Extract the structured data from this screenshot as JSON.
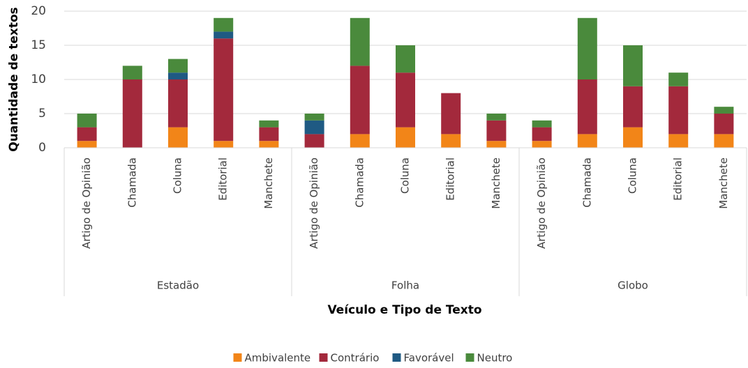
{
  "chart_data": {
    "type": "stacked_bar",
    "x_label": "Veículo e Tipo de Texto",
    "y_label": "Quantidade de textos",
    "groups": [
      {
        "name": "Estadão",
        "categories": [
          "Artigo de Opinião",
          "Chamada",
          "Coluna",
          "Editorial",
          "Manchete"
        ]
      },
      {
        "name": "Folha",
        "categories": [
          "Artigo de Opinião",
          "Chamada",
          "Coluna",
          "Editorial",
          "Manchete"
        ]
      },
      {
        "name": "Globo",
        "categories": [
          "Artigo de Opinião",
          "Chamada",
          "Coluna",
          "Editorial",
          "Manchete"
        ]
      }
    ],
    "series": [
      {
        "name": "Ambivalente",
        "color": "#f28518",
        "values": [
          1,
          0,
          3,
          1,
          1,
          0,
          2,
          3,
          2,
          1,
          1,
          2,
          3,
          2,
          2
        ]
      },
      {
        "name": "Contrário",
        "color": "#a3293c",
        "values": [
          2,
          10,
          7,
          15,
          2,
          2,
          10,
          8,
          6,
          3,
          2,
          8,
          6,
          7,
          3
        ]
      },
      {
        "name": "Favorável",
        "color": "#1f5a83",
        "values": [
          0,
          0,
          1,
          1,
          0,
          2,
          0,
          0,
          0,
          0,
          0,
          0,
          0,
          0,
          0
        ]
      },
      {
        "name": "Neutro",
        "color": "#4a8a3c",
        "values": [
          2,
          2,
          2,
          2,
          1,
          1,
          7,
          4,
          0,
          1,
          1,
          9,
          6,
          2,
          1
        ]
      }
    ],
    "ylim": [
      0,
      20
    ],
    "yticks": [
      0,
      5,
      10,
      15,
      20
    ],
    "grid": true,
    "legend": "bottom"
  }
}
